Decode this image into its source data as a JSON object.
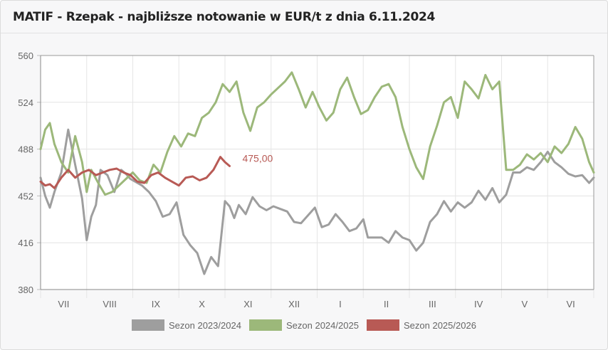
{
  "header": {
    "title": "MATIF - Rzepak - najbliższe notowanie w EUR/t z dnia 6.11.2024"
  },
  "chart_data": {
    "type": "line",
    "title": "MATIF - Rzepak - najbliższe notowanie w EUR/t z dnia 6.11.2024",
    "xlabel": "",
    "ylabel": "",
    "ylim": [
      380,
      560
    ],
    "yticks": [
      "560",
      "524",
      "488",
      "452",
      "416",
      "380"
    ],
    "yticks_values": [
      560,
      524,
      488,
      452,
      416,
      380
    ],
    "categories": [
      "VII",
      "VIII",
      "IX",
      "X",
      "XI",
      "XII",
      "I",
      "II",
      "III",
      "IV",
      "V",
      "VI"
    ],
    "grid": true,
    "legend_position": "bottom",
    "annotation": {
      "text": "475,00",
      "series": "Sezon 2025/2026",
      "value": 475.0
    },
    "x_unit": "months since start of July (0 = start of VII, 12 = end of VI)",
    "series": [
      {
        "name": "Sezon 2023/2024",
        "color": "#9e9e9e",
        "x": [
          0,
          0.1,
          0.2,
          0.3,
          0.45,
          0.6,
          0.75,
          0.9,
          1.0,
          1.1,
          1.2,
          1.3,
          1.45,
          1.6,
          1.75,
          1.85,
          1.95,
          2.1,
          2.2,
          2.35,
          2.5,
          2.65,
          2.8,
          2.95,
          3.1,
          3.25,
          3.4,
          3.55,
          3.7,
          3.85,
          4.0,
          4.1,
          4.2,
          4.3,
          4.45,
          4.6,
          4.75,
          4.9,
          5.05,
          5.2,
          5.35,
          5.5,
          5.65,
          5.8,
          5.95,
          6.1,
          6.25,
          6.4,
          6.55,
          6.7,
          6.85,
          7.0,
          7.1,
          7.25,
          7.4,
          7.55,
          7.7,
          7.85,
          8.0,
          8.15,
          8.3,
          8.45,
          8.6,
          8.75,
          8.9,
          9.05,
          9.2,
          9.35,
          9.5,
          9.65,
          9.8,
          9.95,
          10.1,
          10.25,
          10.4,
          10.55,
          10.7,
          10.85,
          11.0,
          11.15,
          11.3,
          11.45,
          11.6,
          11.75,
          11.9,
          12.0
        ],
        "values": [
          466,
          452,
          443,
          455,
          470,
          503,
          476,
          450,
          418,
          436,
          445,
          472,
          468,
          455,
          472,
          469,
          465,
          462,
          460,
          455,
          448,
          436,
          438,
          447,
          422,
          414,
          408,
          392,
          405,
          398,
          448,
          444,
          435,
          445,
          438,
          451,
          444,
          441,
          444,
          442,
          440,
          432,
          431,
          437,
          443,
          428,
          430,
          438,
          432,
          425,
          427,
          434,
          420,
          420,
          420,
          416,
          425,
          420,
          418,
          410,
          416,
          432,
          438,
          448,
          440,
          447,
          443,
          447,
          456,
          449,
          458,
          447,
          453,
          470,
          470,
          474,
          472,
          478,
          486,
          478,
          474,
          469,
          467,
          468,
          462,
          466
        ]
      },
      {
        "name": "Sezon 2024/2025",
        "color": "#9cb87a",
        "x": [
          0,
          0.1,
          0.2,
          0.3,
          0.45,
          0.6,
          0.75,
          0.9,
          1.0,
          1.1,
          1.25,
          1.4,
          1.55,
          1.7,
          1.85,
          2.0,
          2.15,
          2.3,
          2.45,
          2.6,
          2.75,
          2.9,
          3.05,
          3.2,
          3.35,
          3.5,
          3.65,
          3.8,
          3.95,
          4.1,
          4.25,
          4.4,
          4.55,
          4.7,
          4.85,
          5.0,
          5.15,
          5.3,
          5.45,
          5.6,
          5.75,
          5.9,
          6.05,
          6.2,
          6.35,
          6.5,
          6.65,
          6.8,
          6.95,
          7.1,
          7.25,
          7.4,
          7.55,
          7.7,
          7.85,
          8.0,
          8.15,
          8.3,
          8.45,
          8.6,
          8.75,
          8.9,
          9.05,
          9.2,
          9.35,
          9.5,
          9.65,
          9.8,
          9.95,
          10.1,
          10.25,
          10.4,
          10.55,
          10.7,
          10.85,
          11.0,
          11.15,
          11.3,
          11.45,
          11.6,
          11.75,
          11.9,
          12.0
        ],
        "values": [
          488,
          503,
          508,
          492,
          478,
          470,
          498,
          478,
          455,
          472,
          462,
          453,
          455,
          460,
          465,
          470,
          464,
          462,
          476,
          470,
          486,
          498,
          490,
          500,
          498,
          512,
          516,
          524,
          538,
          532,
          540,
          516,
          502,
          520,
          524,
          530,
          535,
          540,
          547,
          534,
          520,
          532,
          520,
          510,
          516,
          534,
          543,
          528,
          515,
          518,
          528,
          536,
          538,
          528,
          505,
          488,
          474,
          465,
          490,
          506,
          524,
          528,
          512,
          540,
          534,
          527,
          545,
          534,
          540,
          472,
          472,
          476,
          484,
          480,
          485,
          478,
          490,
          485,
          492,
          505,
          496,
          478,
          470
        ]
      },
      {
        "name": "Sezon 2025/2026",
        "color": "#b85a55",
        "x": [
          0,
          0.1,
          0.2,
          0.3,
          0.45,
          0.6,
          0.75,
          0.9,
          1.05,
          1.2,
          1.35,
          1.5,
          1.65,
          1.8,
          1.95,
          2.1,
          2.25,
          2.4,
          2.55,
          2.7,
          2.85,
          3.0,
          3.15,
          3.3,
          3.45,
          3.6,
          3.75,
          3.9,
          4.0,
          4.1
        ],
        "values": [
          463,
          460,
          461,
          458,
          466,
          472,
          466,
          470,
          472,
          468,
          470,
          472,
          473,
          470,
          468,
          463,
          462,
          468,
          470,
          466,
          463,
          460,
          466,
          467,
          464,
          466,
          472,
          482,
          478,
          475
        ]
      }
    ]
  }
}
